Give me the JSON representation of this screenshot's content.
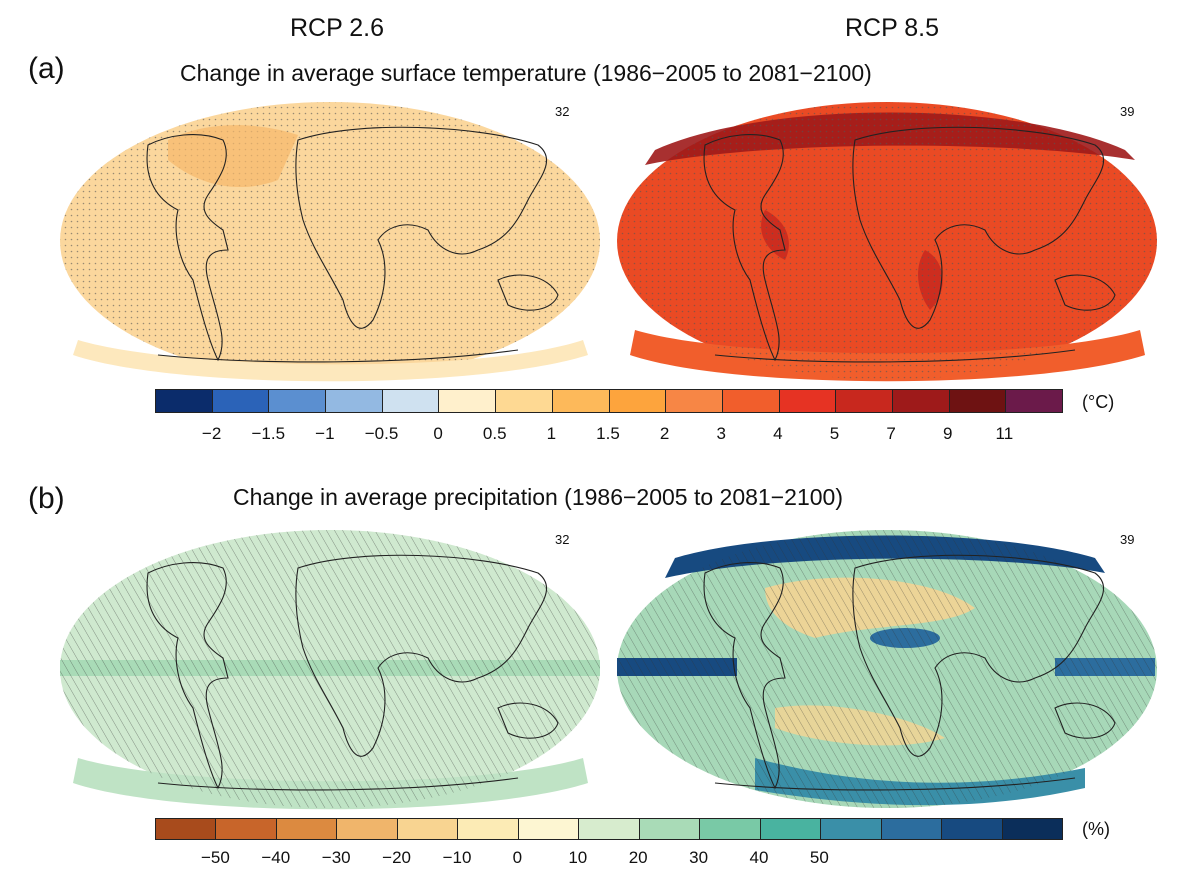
{
  "scenarios": [
    "RCP 2.6",
    "RCP 8.5"
  ],
  "panel_a": {
    "label": "(a)",
    "title": "Change in average surface temperature (1986−2005 to 2081−2100)",
    "model_counts": [
      "32",
      "39"
    ],
    "colorbar": {
      "unit": "(°C)",
      "colors": [
        "#0b2c6b",
        "#2b63b8",
        "#5b8fd0",
        "#93b9e2",
        "#cfe1f0",
        "#fff0cc",
        "#fed993",
        "#fdb95a",
        "#fda43d",
        "#f78645",
        "#f15e2c",
        "#e63323",
        "#c8281e",
        "#9e1a1a",
        "#6e1212",
        "#6b1a4a"
      ],
      "ticks": [
        "−2",
        "−1.5",
        "−1",
        "−0.5",
        "0",
        "0.5",
        "1",
        "1.5",
        "2",
        "3",
        "4",
        "5",
        "7",
        "9",
        "11"
      ]
    }
  },
  "panel_b": {
    "label": "(b)",
    "title": "Change in average precipitation (1986−2005 to 2081−2100)",
    "model_counts": [
      "32",
      "39"
    ],
    "colorbar": {
      "unit": "(%)",
      "colors": [
        "#a84b1c",
        "#c8652a",
        "#dc8a40",
        "#f0b56b",
        "#f8d491",
        "#fcebb5",
        "#fdf6d2",
        "#d7ecce",
        "#a9dbb7",
        "#79c9a6",
        "#49b3a0",
        "#3a8fa8",
        "#2c6d9e",
        "#174a80",
        "#0b2e5a"
      ],
      "ticks": [
        "−50",
        "−40",
        "−30",
        "−20",
        "−10",
        "0",
        "10",
        "20",
        "30",
        "40",
        "50"
      ]
    }
  },
  "map_colors": {
    "temp_rcp26": "#fbd79d",
    "temp_rcp85": "#ea4a24",
    "precip_rcp26": "#cfe9cf",
    "precip_rcp85": "#a7d8b8"
  }
}
